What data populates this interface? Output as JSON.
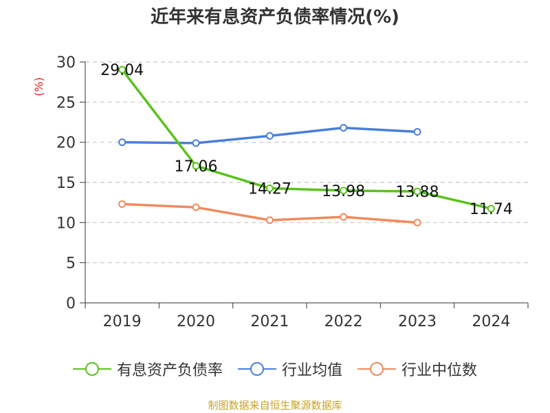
{
  "chart_data": {
    "type": "line",
    "title": "近年来有息资产负债率情况(%)",
    "ylabel": "(%)",
    "xlabel": "",
    "categories": [
      "2019",
      "2020",
      "2021",
      "2022",
      "2023",
      "2024"
    ],
    "ylim": [
      0,
      30
    ],
    "yticks": [
      0,
      5,
      10,
      15,
      20,
      25,
      30
    ],
    "grid": true,
    "legend_position": "bottom",
    "series": [
      {
        "name": "有息资产负债率",
        "color": "#5ac21e",
        "values": [
          29.04,
          17.06,
          14.27,
          13.98,
          13.88,
          11.74
        ],
        "labels": [
          "29.04",
          "17.06",
          "14.27",
          "13.98",
          "13.88",
          "11.74"
        ]
      },
      {
        "name": "行业均值",
        "color": "#4a7fd9",
        "values": [
          20.0,
          19.9,
          20.8,
          21.8,
          21.3,
          null
        ]
      },
      {
        "name": "行业中位数",
        "color": "#f08a5d",
        "values": [
          12.3,
          11.9,
          10.3,
          10.7,
          10.0,
          null
        ]
      }
    ]
  },
  "source": "制图数据来自恒生聚源数据库"
}
